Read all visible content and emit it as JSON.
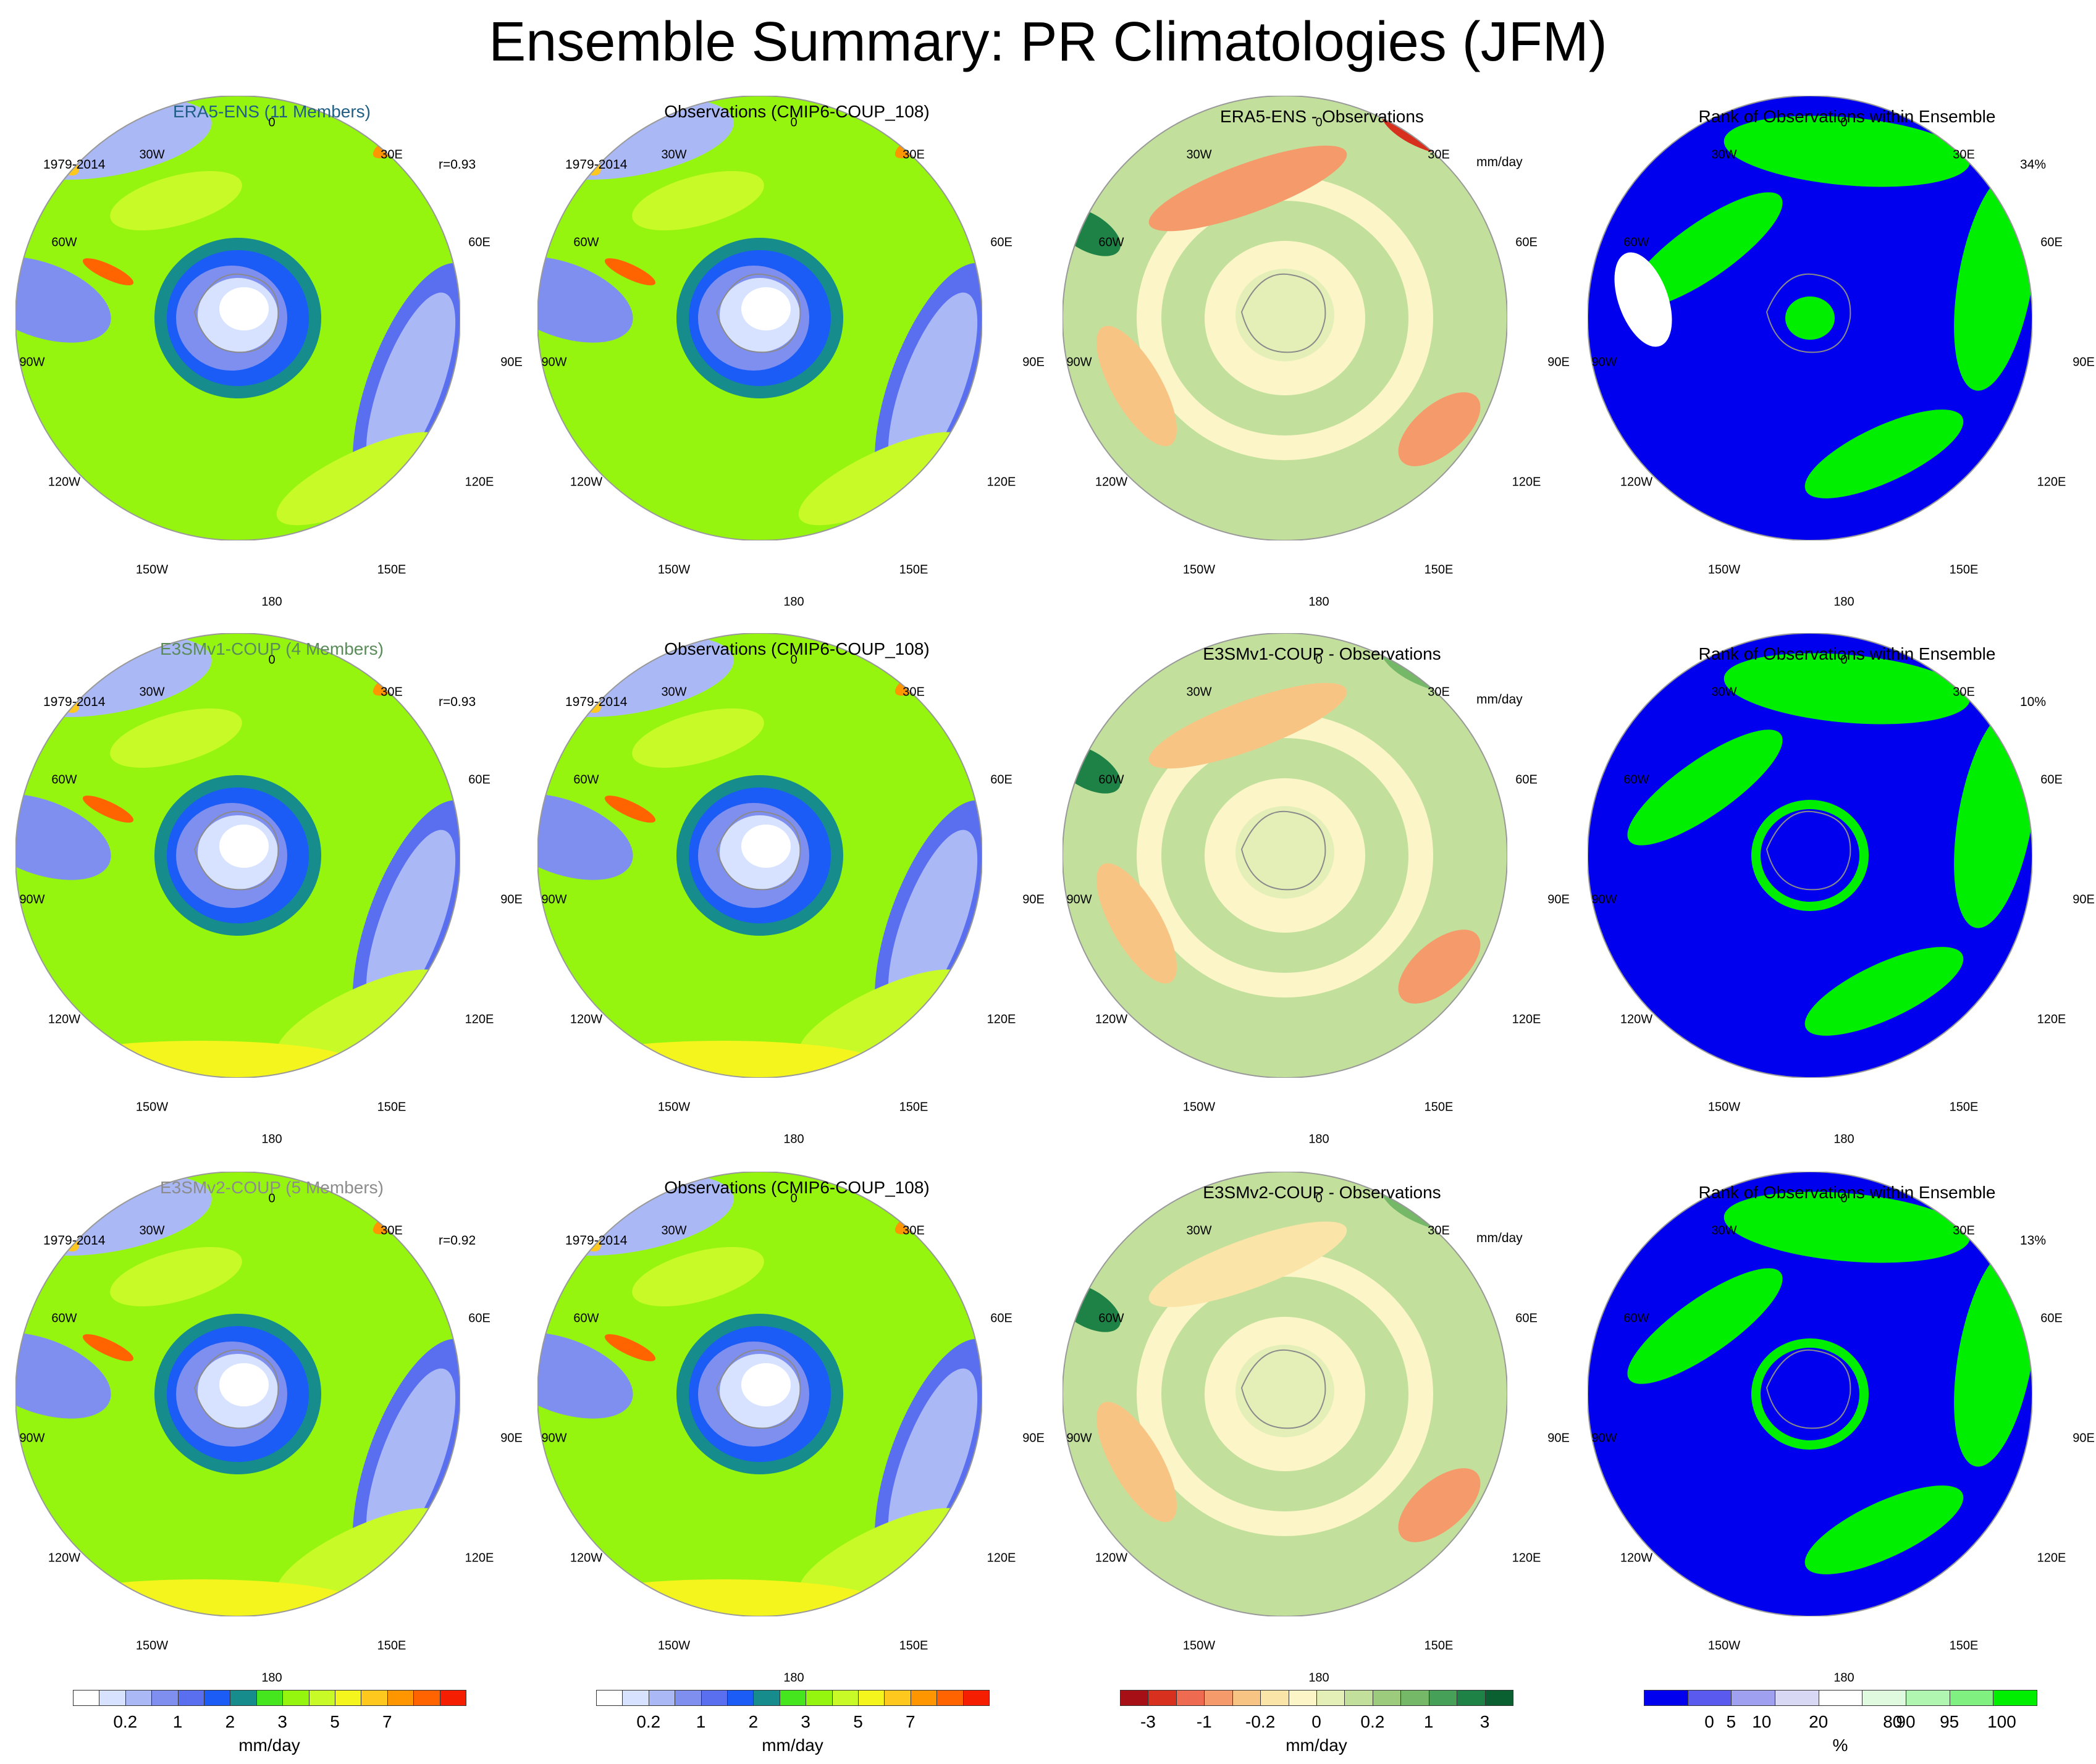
{
  "title": "Ensemble Summary: PR Climatologies (JFM)",
  "colors": {
    "era5_title": "#1f5f85",
    "e3smv1_title": "#5a8c5a",
    "e3smv2_title": "#8c8c8c",
    "land_outline": "#8a8a8a",
    "rank_low": "#0000ee",
    "rank_mid": "#ffffff",
    "rank_high": "#00ee00"
  },
  "longitude_labels": [
    "0",
    "30E",
    "60E",
    "90E",
    "120E",
    "150E",
    "180",
    "150W",
    "120W",
    "90W",
    "60W",
    "30W"
  ],
  "rows": [
    {
      "model": {
        "title": "ERA5-ENS (11 Members)",
        "period": "1979-2014",
        "corr": "r=0.93"
      },
      "obs": {
        "title": "Observations (CMIP6-COUP_108)",
        "period": "1979-2014"
      },
      "diff": {
        "title": "ERA5-ENS - Observations",
        "units": "mm/day"
      },
      "rank": {
        "title": "Rank of Observations within Ensemble",
        "percent": "34%"
      }
    },
    {
      "model": {
        "title": "E3SMv1-COUP (4 Members)",
        "period": "1979-2014",
        "corr": "r=0.93"
      },
      "obs": {
        "title": "Observations (CMIP6-COUP_108)",
        "period": "1979-2014"
      },
      "diff": {
        "title": "E3SMv1-COUP - Observations",
        "units": "mm/day"
      },
      "rank": {
        "title": "Rank of Observations within Ensemble",
        "percent": "10%"
      }
    },
    {
      "model": {
        "title": "E3SMv2-COUP (5 Members)",
        "period": "1979-2014",
        "corr": "r=0.92"
      },
      "obs": {
        "title": "Observations (CMIP6-COUP_108)",
        "period": "1979-2014"
      },
      "diff": {
        "title": "E3SMv2-COUP - Observations",
        "units": "mm/day"
      },
      "rank": {
        "title": "Rank of Observations within Ensemble",
        "percent": "13%"
      }
    }
  ],
  "chart_data": [
    {
      "type": "heatmap",
      "name": "precipitation climatology colorbar",
      "unit_label": "mm/day",
      "tick_labels": [
        "0.2",
        "1",
        "2",
        "3",
        "5",
        "7"
      ],
      "colors": [
        "#ffffff",
        "#d6e2ff",
        "#aab8f5",
        "#7f8ff0",
        "#5a6ef0",
        "#1a5cf5",
        "#168c8c",
        "#46e61e",
        "#96f50f",
        "#c8fa28",
        "#f5f51e",
        "#ffc81e",
        "#ff9600",
        "#ff6400",
        "#f51e00"
      ],
      "region": "Southern Hemisphere polar stereographic (JFM)"
    },
    {
      "type": "heatmap",
      "name": "difference colorbar",
      "unit_label": "mm/day",
      "tick_labels": [
        "-3",
        "-1",
        "-0.2",
        "0",
        "0.2",
        "1",
        "3"
      ],
      "colors": [
        "#a50f15",
        "#d7301f",
        "#ee6a50",
        "#f59a6a",
        "#f8c484",
        "#fae4a8",
        "#fcf5c8",
        "#e4efb8",
        "#c2e09c",
        "#9ccb7d",
        "#74b868",
        "#46a058",
        "#1e8246",
        "#0a6030"
      ]
    },
    {
      "type": "heatmap",
      "name": "rank colorbar",
      "unit_label": "%",
      "tick_labels": [
        "0",
        "5",
        "10",
        "20",
        "80",
        "90",
        "95",
        "100"
      ],
      "colors": [
        "#0000ee",
        "#5a5aee",
        "#a0a0f0",
        "#d8d8f5",
        "#ffffff",
        "#e0fae0",
        "#b0f5b0",
        "#80f080",
        "#00ee00"
      ]
    }
  ]
}
